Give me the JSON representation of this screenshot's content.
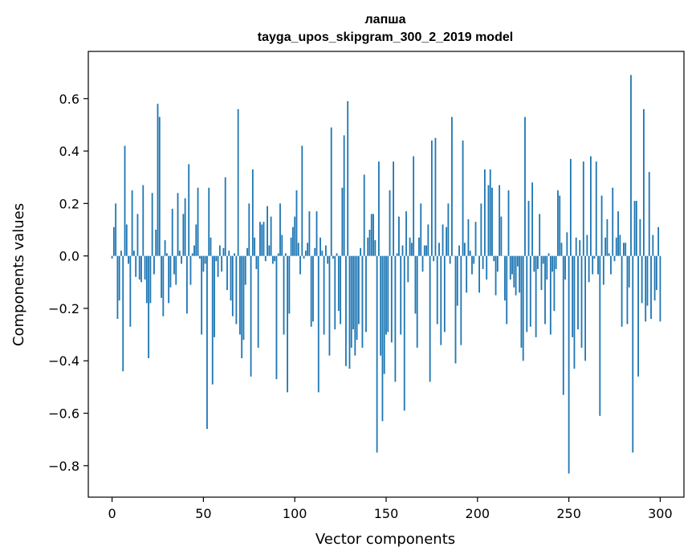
{
  "chart_data": {
    "type": "bar",
    "title": "лапша",
    "subtitle": "tayga_upos_skipgram_300_2_2019 model",
    "xlabel": "Vector components",
    "ylabel": "Components values",
    "xlim": [
      -13,
      313
    ],
    "ylim": [
      -0.92,
      0.78
    ],
    "xticks": [
      0,
      50,
      100,
      150,
      200,
      250,
      300
    ],
    "yticks": [
      -0.8,
      -0.6,
      -0.4,
      -0.2,
      0.0,
      0.2,
      0.4,
      0.6
    ],
    "ytick_labels": [
      "−0.8",
      "−0.6",
      "−0.4",
      "−0.2",
      "0.0",
      "0.2",
      "0.4",
      "0.6"
    ],
    "grid": false,
    "color": "#1f77b4",
    "values": [
      -0.01,
      0.11,
      0.2,
      -0.24,
      -0.17,
      0.02,
      -0.44,
      0.42,
      0.12,
      -0.03,
      -0.27,
      0.25,
      0.02,
      -0.08,
      0.16,
      -0.09,
      -0.1,
      0.27,
      -0.09,
      -0.18,
      -0.39,
      -0.18,
      0.24,
      -0.07,
      0.1,
      0.58,
      0.53,
      -0.16,
      -0.23,
      0.06,
      0.01,
      -0.18,
      -0.12,
      0.18,
      -0.07,
      -0.11,
      0.24,
      0.02,
      -0.03,
      0.16,
      0.22,
      -0.22,
      0.35,
      -0.11,
      0.01,
      0.04,
      0.12,
      0.26,
      -0.01,
      -0.3,
      -0.06,
      -0.03,
      -0.66,
      0.26,
      0.07,
      -0.49,
      -0.31,
      -0.02,
      -0.08,
      0.04,
      -0.06,
      0.03,
      0.3,
      -0.13,
      0.02,
      -0.17,
      -0.23,
      0.01,
      -0.26,
      0.56,
      -0.3,
      -0.39,
      -0.32,
      -0.11,
      0.03,
      0.2,
      -0.46,
      0.33,
      0.07,
      -0.05,
      -0.35,
      0.13,
      0.12,
      0.13,
      -0.02,
      0.19,
      0.04,
      0.15,
      -0.03,
      -0.02,
      -0.47,
      0.01,
      0.2,
      0.08,
      -0.3,
      0.01,
      -0.52,
      -0.22,
      0.07,
      0.11,
      0.15,
      0.25,
      0.05,
      -0.07,
      0.42,
      -0.01,
      0.02,
      0.05,
      0.17,
      -0.27,
      -0.25,
      0.03,
      0.17,
      -0.52,
      0.07,
      0.02,
      -0.3,
      0.04,
      -0.03,
      -0.38,
      0.49,
      -0.01,
      -0.28,
      0.01,
      -0.21,
      -0.26,
      0.26,
      0.46,
      -0.42,
      0.59,
      -0.43,
      -0.35,
      -0.28,
      -0.38,
      -0.32,
      -0.26,
      0.03,
      -0.35,
      0.31,
      -0.29,
      0.07,
      0.1,
      0.16,
      0.16,
      0.06,
      -0.75,
      0.36,
      -0.38,
      -0.63,
      -0.45,
      -0.3,
      -0.29,
      0.25,
      -0.33,
      0.36,
      -0.48,
      0.01,
      0.15,
      -0.3,
      0.04,
      -0.59,
      0.17,
      -0.1,
      0.07,
      0.05,
      0.38,
      -0.22,
      -0.35,
      0.07,
      0.2,
      -0.06,
      0.04,
      0.04,
      0.12,
      -0.48,
      0.44,
      -0.02,
      0.45,
      -0.26,
      0.05,
      -0.34,
      0.12,
      -0.29,
      0.11,
      0.2,
      -0.03,
      0.53,
      0.0,
      -0.41,
      -0.19,
      0.04,
      -0.34,
      0.44,
      0.05,
      -0.14,
      0.14,
      0.02,
      -0.07,
      -0.03,
      0.13,
      0.0,
      -0.14,
      0.2,
      -0.05,
      0.33,
      -0.09,
      0.27,
      0.33,
      0.26,
      -0.02,
      -0.15,
      -0.06,
      0.27,
      0.15,
      0.0,
      -0.17,
      -0.26,
      0.25,
      -0.09,
      -0.07,
      -0.12,
      -0.15,
      -0.04,
      -0.14,
      -0.35,
      -0.4,
      0.53,
      -0.29,
      0.21,
      -0.27,
      0.28,
      -0.06,
      -0.31,
      -0.05,
      0.16,
      -0.13,
      -0.03,
      -0.26,
      -0.09,
      0.01,
      -0.3,
      -0.06,
      -0.21,
      -0.05,
      0.25,
      0.23,
      0.05,
      -0.53,
      -0.09,
      0.09,
      -0.83,
      0.37,
      -0.31,
      -0.43,
      0.07,
      -0.28,
      0.06,
      -0.35,
      0.36,
      -0.4,
      0.08,
      -0.1,
      0.38,
      -0.07,
      -0.01,
      0.36,
      -0.07,
      -0.61,
      0.23,
      -0.11,
      0.07,
      0.14,
      0.01,
      -0.07,
      0.26,
      -0.02,
      0.07,
      0.17,
      0.08,
      -0.27,
      0.05,
      0.05,
      -0.26,
      -0.12,
      0.69,
      -0.75,
      0.21,
      0.21,
      -0.46,
      0.14,
      -0.18,
      0.56,
      -0.25,
      -0.19,
      0.32,
      -0.24,
      0.08,
      -0.17,
      -0.13,
      0.11,
      -0.25
    ]
  }
}
